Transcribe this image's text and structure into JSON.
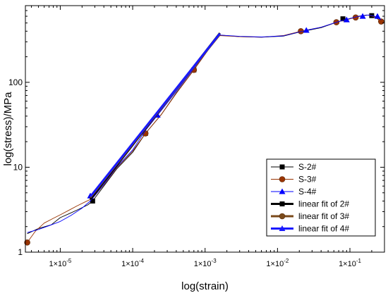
{
  "chart_data": {
    "type": "line",
    "xlabel": "log(strain)",
    "ylabel": "log(stress)/MPa",
    "x_scale": "log",
    "y_scale": "log",
    "xlim": [
      3.3e-06,
      0.3
    ],
    "ylim": [
      1,
      800
    ],
    "x_ticks": [
      {
        "value": 1e-05,
        "label": "1×10",
        "exp": "-5"
      },
      {
        "value": 0.0001,
        "label": "1×10",
        "exp": "-4"
      },
      {
        "value": 0.001,
        "label": "1×10",
        "exp": "-3"
      },
      {
        "value": 0.01,
        "label": "1×10",
        "exp": "-2"
      },
      {
        "value": 0.1,
        "label": "1×10",
        "exp": "-1"
      }
    ],
    "y_ticks": [
      {
        "value": 1,
        "label": "1"
      },
      {
        "value": 10,
        "label": "10"
      },
      {
        "value": 100,
        "label": "100"
      }
    ],
    "grid": false,
    "legend_position": "bottom-right",
    "series": [
      {
        "name": "S-2#",
        "color": "#000000",
        "marker": "square",
        "kind": "data",
        "x": [
          3.5e-06,
          5e-06,
          7.5e-06,
          1e-05,
          1.4e-05,
          1.8e-05,
          2.4e-05,
          2.8e-05,
          4e-05,
          6e-05,
          0.0001,
          0.00015,
          0.00025,
          0.0004,
          0.0007,
          0.0011,
          0.0016,
          0.003,
          0.006,
          0.012,
          0.02,
          0.04,
          0.07,
          0.1,
          0.13,
          0.17,
          0.2,
          0.24,
          0.27
        ],
        "y": [
          1.65,
          1.9,
          2.1,
          2.55,
          2.9,
          3.2,
          3.6,
          4.0,
          6.0,
          9.5,
          15,
          25,
          42,
          75,
          140,
          240,
          360,
          345,
          340,
          350,
          390,
          440,
          520,
          560,
          600,
          620,
          610,
          560,
          530
        ],
        "marker_x": [
          2.8e-05,
          0.00015,
          0.0007,
          0.08,
          0.2
        ],
        "marker_y": [
          4.0,
          25,
          140,
          560,
          610
        ]
      },
      {
        "name": "S-3#",
        "color": "#993300",
        "marker": "circle",
        "kind": "data",
        "x": [
          3.5e-06,
          4.5e-06,
          6e-06,
          8e-06,
          1e-05,
          1.3e-05,
          1.7e-05,
          2.2e-05,
          2.8e-05,
          4e-05,
          6e-05,
          0.0001,
          0.00015,
          0.00025,
          0.0004,
          0.0007,
          0.0011,
          0.0016,
          0.003,
          0.006,
          0.012,
          0.021,
          0.04,
          0.065,
          0.1,
          0.14,
          0.18,
          0.22,
          0.27
        ],
        "y": [
          1.3,
          1.75,
          2.2,
          2.5,
          2.75,
          3.1,
          3.5,
          3.9,
          4.3,
          6.2,
          9.8,
          15.5,
          25,
          42,
          74,
          140,
          240,
          355,
          345,
          340,
          355,
          400,
          445,
          510,
          560,
          600,
          620,
          590,
          520
        ],
        "marker_x": [
          3.5e-06,
          0.00015,
          0.0007,
          0.021,
          0.065,
          0.12,
          0.27
        ],
        "marker_y": [
          1.3,
          25,
          140,
          400,
          510,
          580,
          520
        ]
      },
      {
        "name": "S-4#",
        "color": "#0000ff",
        "marker": "triangle",
        "kind": "data",
        "x": [
          3.5e-06,
          5e-06,
          7e-06,
          1e-05,
          1.4e-05,
          2e-05,
          2.6e-05,
          4e-05,
          6e-05,
          0.0001,
          0.00015,
          0.00022,
          0.0004,
          0.0007,
          0.0011,
          0.0016,
          0.003,
          0.006,
          0.012,
          0.025,
          0.04,
          0.07,
          0.1,
          0.14,
          0.18,
          0.22,
          0.27
        ],
        "y": [
          1.7,
          1.85,
          2.05,
          2.3,
          2.7,
          3.3,
          4.0,
          6.3,
          10,
          16,
          27,
          41,
          78,
          145,
          245,
          360,
          348,
          342,
          352,
          410,
          445,
          520,
          565,
          605,
          620,
          600,
          545
        ],
        "marker_x": [
          2.6e-05,
          0.00022,
          0.025,
          0.09,
          0.15,
          0.24
        ],
        "marker_y": [
          4.6,
          41,
          410,
          545,
          600,
          600
        ]
      },
      {
        "name": "linear fit of 2#",
        "color": "#000000",
        "marker": "square",
        "kind": "fit",
        "x": [
          2.6e-05,
          0.0016
        ],
        "y": [
          4.2,
          380
        ]
      },
      {
        "name": "linear fit of 3#",
        "color": "#7a4a1a",
        "marker": "circle",
        "kind": "fit",
        "x": [
          2.6e-05,
          0.0016
        ],
        "y": [
          4.4,
          370
        ]
      },
      {
        "name": "linear fit of 4#",
        "color": "#1a1aff",
        "marker": "triangle",
        "kind": "fit",
        "x": [
          2.6e-05,
          0.0016
        ],
        "y": [
          4.5,
          375
        ]
      }
    ]
  }
}
